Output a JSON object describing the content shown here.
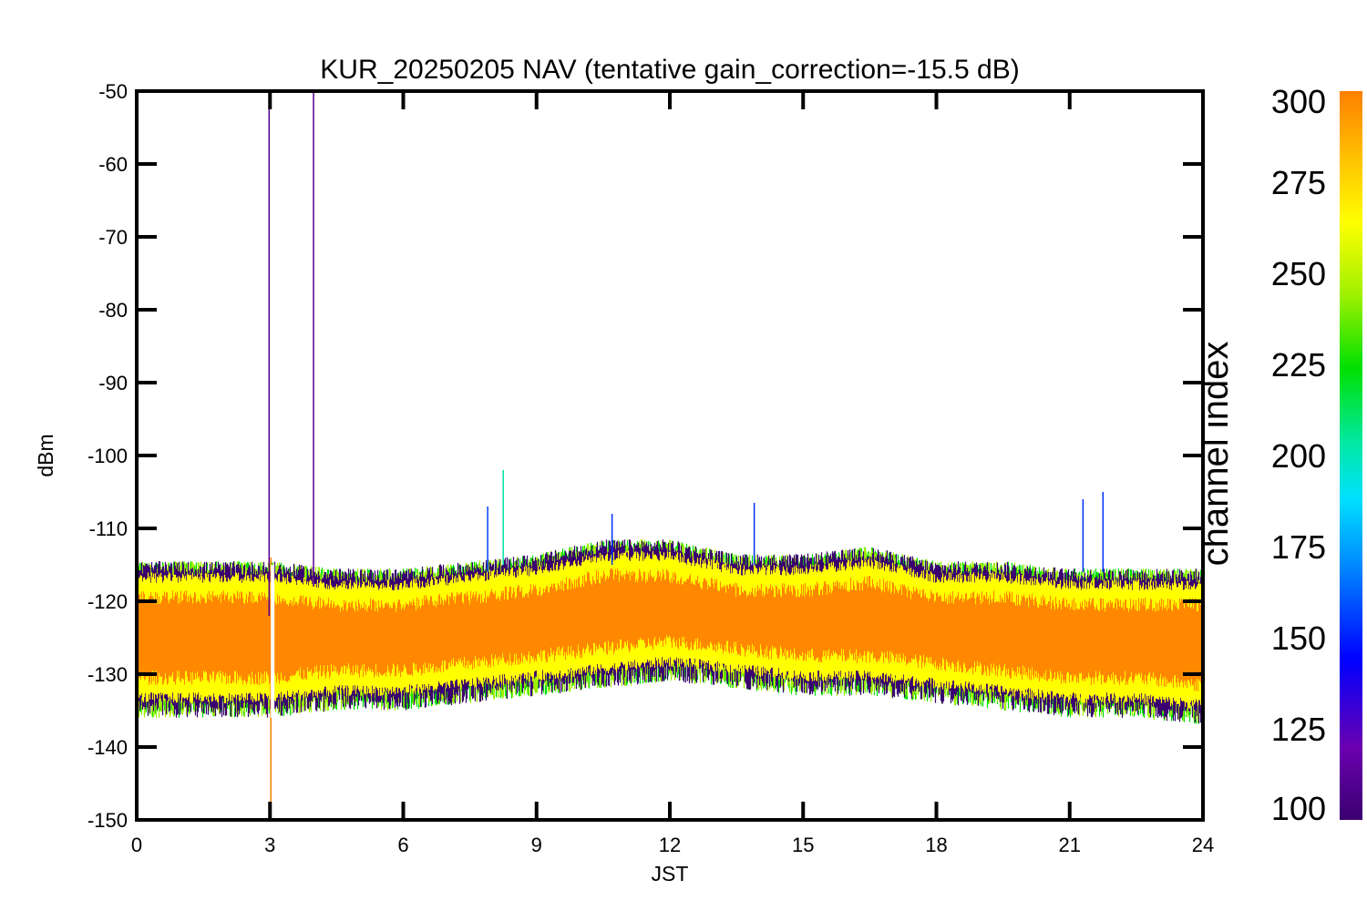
{
  "chart_data": {
    "type": "line",
    "title": "KUR_20250205 NAV (tentative gain_correction=-15.5 dB)",
    "xlabel": "JST",
    "ylabel": "dBm",
    "xlim": [
      0,
      24
    ],
    "ylim": [
      -150,
      -50
    ],
    "xticks": [
      "0",
      "3",
      "6",
      "9",
      "12",
      "15",
      "18",
      "21",
      "24"
    ],
    "yticks": [
      "-50",
      "-60",
      "-70",
      "-80",
      "-90",
      "-100",
      "-110",
      "-120",
      "-130",
      "-140",
      "-150"
    ],
    "grid": false,
    "colorbar": {
      "label": "channel index",
      "range": [
        100,
        300
      ],
      "ticks": [
        "300",
        "275",
        "250",
        "225",
        "200",
        "175",
        "150",
        "125",
        "100"
      ],
      "colormap": [
        "#3a0070",
        "#6a00b0",
        "#0000ff",
        "#0080ff",
        "#00e0ff",
        "#00e8a0",
        "#00e000",
        "#a0f000",
        "#ffff00",
        "#ffc000",
        "#ff8000"
      ]
    },
    "series": [
      {
        "color": "#ff8800",
        "envelope_x": [
          0,
          1.5,
          3,
          4.5,
          6,
          7.5,
          9,
          10.5,
          12,
          13.5,
          15,
          16.5,
          18,
          19.5,
          21,
          22.5,
          24
        ],
        "upper": [
          -116,
          -116,
          -116,
          -117,
          -117,
          -116,
          -115,
          -113,
          -113,
          -115,
          -115,
          -114,
          -116,
          -116,
          -117,
          -117,
          -117
        ],
        "median": [
          -125,
          -125,
          -125,
          -125,
          -125,
          -124.5,
          -124,
          -122.5,
          -122,
          -123,
          -123,
          -123,
          -124,
          -125,
          -125,
          -125,
          -125
        ],
        "lower": [
          -134,
          -134,
          -134,
          -133,
          -133,
          -132,
          -131,
          -130,
          -129,
          -130,
          -131,
          -131,
          -132,
          -133,
          -134,
          -134,
          -135
        ]
      }
    ],
    "annotations": [
      {
        "type": "spike",
        "x": 2.98,
        "y_top": -51,
        "y_bottom": -122,
        "color": "#5a0090"
      },
      {
        "type": "spike",
        "x": 3.98,
        "y_top": -50,
        "y_bottom": -118,
        "color": "#5a0090"
      },
      {
        "type": "spike",
        "x": 7.9,
        "y_top": -107,
        "y_bottom": -116,
        "color": "#0040ff"
      },
      {
        "type": "spike",
        "x": 8.25,
        "y_top": -102,
        "y_bottom": -115,
        "color": "#00e0a0"
      },
      {
        "type": "spike",
        "x": 10.7,
        "y_top": -108,
        "y_bottom": -115,
        "color": "#0030ff"
      },
      {
        "type": "spike",
        "x": 13.9,
        "y_top": -106.5,
        "y_bottom": -115,
        "color": "#0030ff"
      },
      {
        "type": "spike",
        "x": 21.3,
        "y_top": -106,
        "y_bottom": -116,
        "color": "#0030ff"
      },
      {
        "type": "spike",
        "x": 21.75,
        "y_top": -105,
        "y_bottom": -116,
        "color": "#0030ff"
      },
      {
        "type": "dropout",
        "x": 3.02,
        "y_top": -114,
        "y_bottom": -150,
        "color": "#ff8000"
      },
      {
        "type": "gap",
        "x": 3.05
      }
    ]
  }
}
